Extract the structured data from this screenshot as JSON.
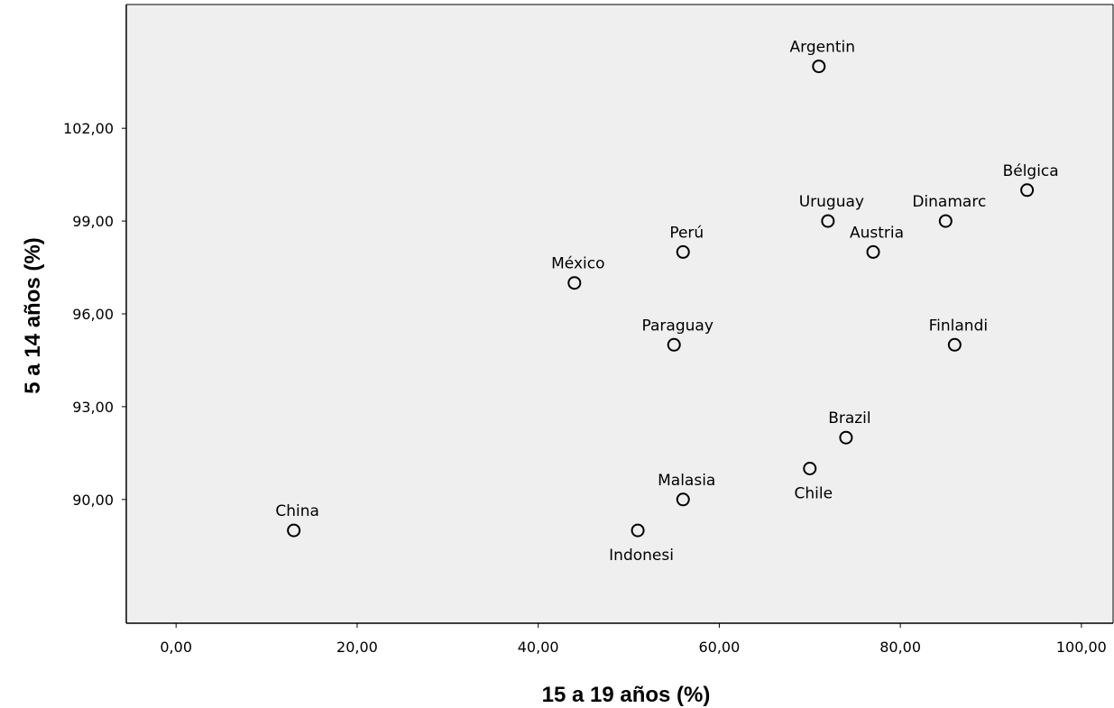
{
  "chart_data": {
    "type": "scatter",
    "title": "",
    "xlabel": "15 a 19 años (%)",
    "ylabel": "5 a 14 años (%)",
    "xlim": [
      -5.5,
      103.5
    ],
    "ylim": [
      86.0,
      106.0
    ],
    "x_ticks": [
      0,
      20,
      40,
      60,
      80,
      100
    ],
    "x_tick_labels": [
      "0,00",
      "20,00",
      "40,00",
      "60,00",
      "80,00",
      "100,00"
    ],
    "y_ticks": [
      90,
      93,
      96,
      99,
      102
    ],
    "y_tick_labels": [
      "90,00",
      "93,00",
      "96,00",
      "99,00",
      "102,00"
    ],
    "grid": false,
    "background": "#efefef",
    "marker_color": "#000000",
    "points": [
      {
        "label": "Argentin",
        "x": 71,
        "y": 104,
        "label_pos": "above"
      },
      {
        "label": "Bélgica",
        "x": 94,
        "y": 100,
        "label_pos": "above"
      },
      {
        "label": "Uruguay",
        "x": 72,
        "y": 99,
        "label_pos": "above"
      },
      {
        "label": "Dinamarc",
        "x": 85,
        "y": 99,
        "label_pos": "above"
      },
      {
        "label": "Perú",
        "x": 56,
        "y": 98,
        "label_pos": "above"
      },
      {
        "label": "Austria",
        "x": 77,
        "y": 98,
        "label_pos": "above"
      },
      {
        "label": "México",
        "x": 44,
        "y": 97,
        "label_pos": "above"
      },
      {
        "label": "Paraguay",
        "x": 55,
        "y": 95,
        "label_pos": "above"
      },
      {
        "label": "Finlandi",
        "x": 86,
        "y": 95,
        "label_pos": "above"
      },
      {
        "label": "Brazil",
        "x": 74,
        "y": 92,
        "label_pos": "above"
      },
      {
        "label": "Chile",
        "x": 70,
        "y": 91,
        "label_pos": "below"
      },
      {
        "label": "Malasia",
        "x": 56,
        "y": 90,
        "label_pos": "above"
      },
      {
        "label": "China",
        "x": 13,
        "y": 89,
        "label_pos": "above"
      },
      {
        "label": "Indonesi",
        "x": 51,
        "y": 89,
        "label_pos": "below"
      }
    ]
  }
}
